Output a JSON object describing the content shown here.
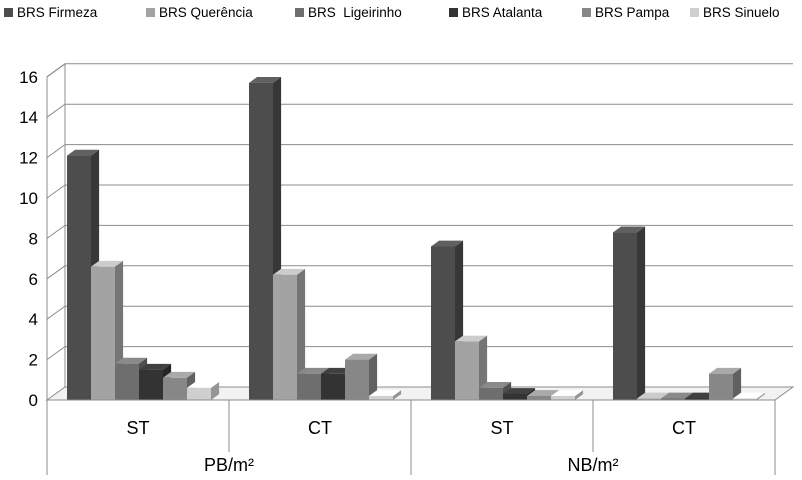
{
  "chart_data": {
    "type": "bar",
    "title": "",
    "xlabel": "",
    "ylabel": "",
    "ylim": [
      0,
      16
    ],
    "y_ticks": [
      "0",
      "2",
      "4",
      "6",
      "8",
      "10",
      "12",
      "14",
      "16"
    ],
    "grid": true,
    "legend_position": "top",
    "groups": [
      {
        "label": "PB/m²",
        "categories": [
          "ST",
          "CT"
        ]
      },
      {
        "label": "NB/m²",
        "categories": [
          "ST",
          "CT"
        ]
      }
    ],
    "categories": [
      "ST",
      "CT",
      "ST",
      "CT"
    ],
    "series": [
      {
        "name": "BRS Firmeza",
        "color": "#4d4d4d",
        "values": [
          12.1,
          15.7,
          7.6,
          8.3
        ]
      },
      {
        "name": "BRS Querência",
        "color": "#a3a3a3",
        "values": [
          6.6,
          6.2,
          2.9,
          0.05
        ]
      },
      {
        "name": "BRS  Ligeirinho",
        "color": "#6e6e6e",
        "values": [
          1.8,
          1.3,
          0.6,
          0.05
        ]
      },
      {
        "name": "BRS Atalanta",
        "color": "#333333",
        "values": [
          1.5,
          1.3,
          0.3,
          0.05
        ]
      },
      {
        "name": "BRS Pampa",
        "color": "#878787",
        "values": [
          1.1,
          2.0,
          0.2,
          1.3
        ]
      },
      {
        "name": "BRS Sinuelo",
        "color": "#cfcfcf",
        "values": [
          0.6,
          0.2,
          0.2,
          0.05
        ]
      }
    ]
  }
}
